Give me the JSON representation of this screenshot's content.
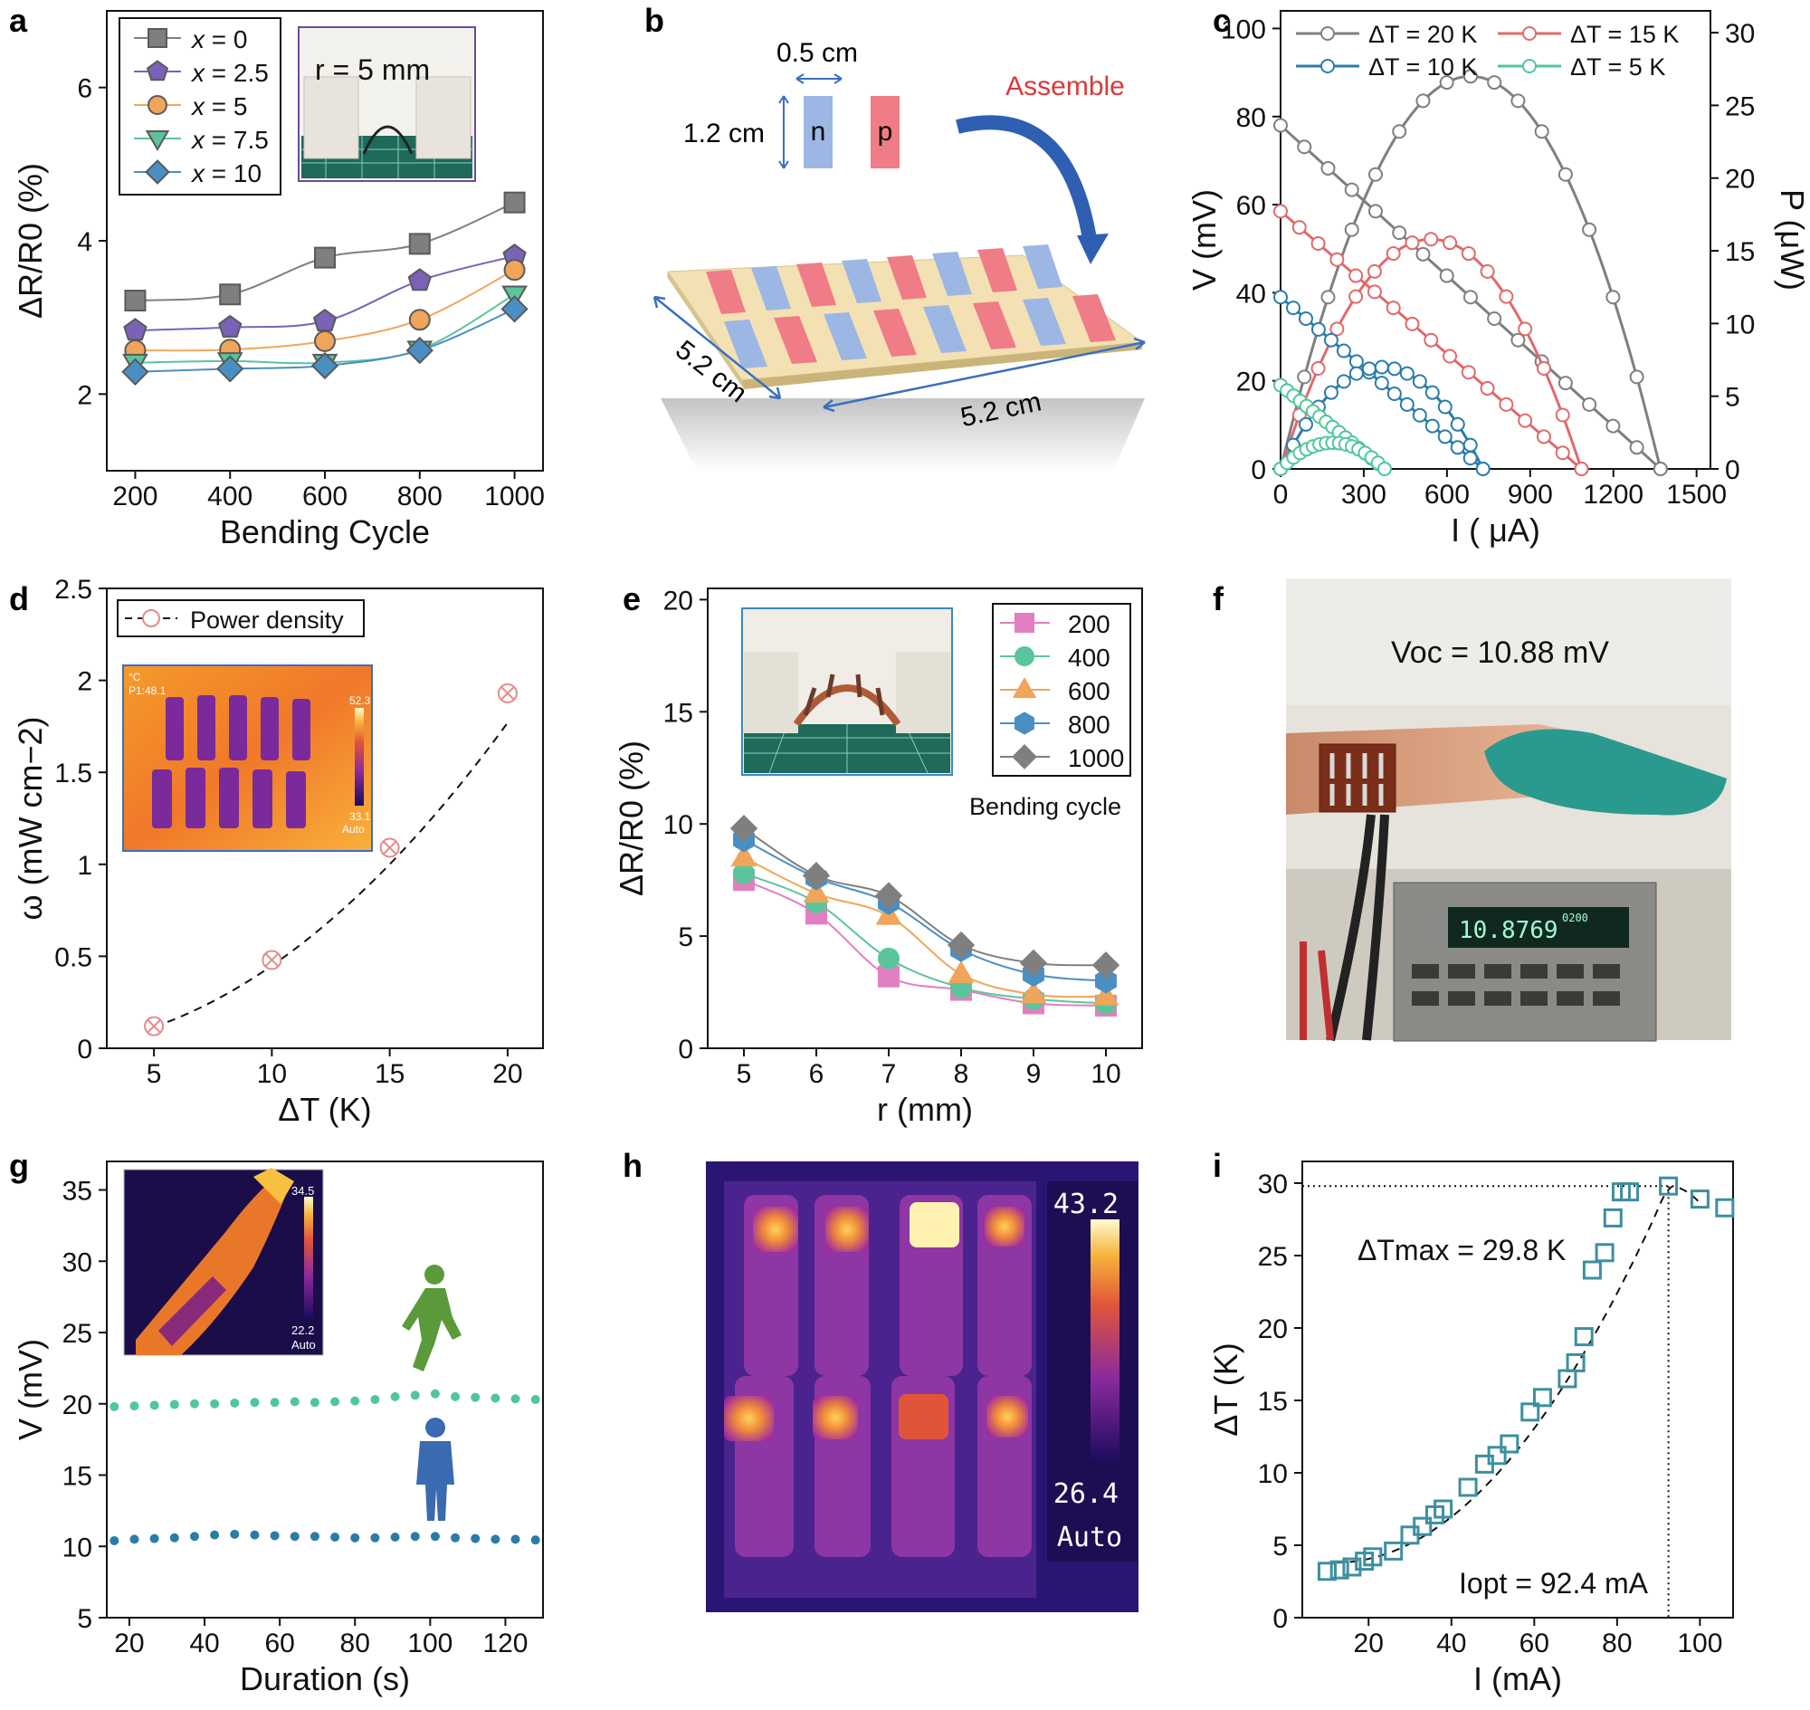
{
  "figure": {
    "panel_labels": [
      "a",
      "b",
      "c",
      "d",
      "e",
      "f",
      "g",
      "h",
      "i"
    ]
  },
  "colors": {
    "gray": "#7f7f7f",
    "purple": "#7a62b8",
    "orange": "#f0a55a",
    "green": "#5cc49a",
    "blue": "#4a8fc4",
    "red": "#e06a6a",
    "teal": "#2a7ca8",
    "mint": "#4fc79a",
    "pink": "#e27fc0",
    "pink_red": "#e58a8a",
    "dark_teal": "#3d8fa0"
  },
  "chart_data": [
    {
      "id": "a",
      "type": "line",
      "title": "",
      "xlabel": "Bending Cycle",
      "ylabel": "ΔR/R0 (%)",
      "xlim": [
        140,
        1060
      ],
      "ylim": [
        1.0,
        7.0
      ],
      "xticks": [
        200,
        400,
        600,
        800,
        1000
      ],
      "yticks": [
        2,
        4,
        6
      ],
      "x": [
        200,
        400,
        600,
        800,
        1000
      ],
      "series": [
        {
          "name": "x = 0",
          "marker": "square",
          "color": "#7f7f7f",
          "values": [
            3.22,
            3.3,
            3.78,
            3.96,
            4.5
          ]
        },
        {
          "name": "x = 2.5",
          "marker": "pentagon",
          "color": "#7a62b8",
          "values": [
            2.83,
            2.87,
            2.95,
            3.48,
            3.8
          ]
        },
        {
          "name": "x = 5",
          "marker": "circle",
          "color": "#f0a55a",
          "values": [
            2.57,
            2.58,
            2.69,
            2.97,
            3.62
          ]
        },
        {
          "name": "x = 7.5",
          "marker": "triangle-down",
          "color": "#5cc49a",
          "values": [
            2.41,
            2.43,
            2.41,
            2.58,
            3.3
          ]
        },
        {
          "name": "x = 10",
          "marker": "diamond",
          "color": "#4a8fc4",
          "values": [
            2.29,
            2.33,
            2.37,
            2.57,
            3.11
          ]
        }
      ],
      "inset_text": "r = 5 mm"
    },
    {
      "id": "c",
      "type": "line",
      "xlabel": "I ( μA)",
      "ylabel": "V (mV)",
      "ylabel_right": "P (μW)",
      "xlim": [
        0,
        1550
      ],
      "ylim": [
        0,
        104
      ],
      "ylim_right": [
        0,
        31.5
      ],
      "xticks": [
        0,
        300,
        600,
        900,
        1200,
        1500
      ],
      "yticks": [
        0,
        20,
        40,
        60,
        80,
        100
      ],
      "yticks_right": [
        0,
        5,
        10,
        15,
        20,
        25,
        30
      ],
      "series": [
        {
          "name": "ΔT = 20 K",
          "color": "#7f7f7f",
          "voc": 78,
          "isc": 1370,
          "pmax": 27.0
        },
        {
          "name": "ΔT = 15 K",
          "color": "#e06a6a",
          "voc": 58.5,
          "isc": 1085,
          "pmax": 15.8
        },
        {
          "name": "ΔT = 10 K",
          "color": "#2a7ca8",
          "voc": 39,
          "isc": 730,
          "pmax": 7.0
        },
        {
          "name": "ΔT = 5 K",
          "color": "#4fc79a",
          "voc": 19,
          "isc": 375,
          "pmax": 1.8
        }
      ]
    },
    {
      "id": "d",
      "type": "scatter",
      "xlabel": "ΔT (K)",
      "ylabel": "ω (mW cm−2)",
      "xlim": [
        3,
        21.5
      ],
      "ylim": [
        0,
        2.5
      ],
      "xticks": [
        5,
        10,
        15,
        20
      ],
      "yticks": [
        0,
        0.5,
        1,
        1.5,
        2,
        2.5
      ],
      "ytick_labels": [
        "0",
        "0.5",
        "1",
        "1.5",
        "2",
        "2.5"
      ],
      "series": [
        {
          "name": "Power density",
          "color": "#e58a8a",
          "x": [
            5,
            10,
            15,
            20
          ],
          "values": [
            0.12,
            0.48,
            1.09,
            1.93
          ]
        }
      ]
    },
    {
      "id": "e",
      "type": "line",
      "xlabel": "r (mm)",
      "ylabel": "ΔR/R0 (%)",
      "xlim": [
        4.5,
        10.5
      ],
      "ylim": [
        0,
        20.5
      ],
      "xticks": [
        5,
        6,
        7,
        8,
        9,
        10
      ],
      "yticks": [
        0,
        5,
        10,
        15,
        20
      ],
      "x": [
        5,
        6,
        7,
        8,
        9,
        10
      ],
      "legend_title": "Bending cycle",
      "series": [
        {
          "name": "200",
          "marker": "square",
          "color": "#e27fc0",
          "values": [
            7.5,
            6.0,
            3.2,
            2.6,
            2.0,
            1.9
          ]
        },
        {
          "name": "400",
          "marker": "circle",
          "color": "#5cc49a",
          "values": [
            7.8,
            6.5,
            4.0,
            2.7,
            2.2,
            2.0
          ]
        },
        {
          "name": "600",
          "marker": "triangle",
          "color": "#f0a55a",
          "values": [
            8.5,
            6.9,
            5.9,
            3.3,
            2.4,
            2.3
          ]
        },
        {
          "name": "800",
          "marker": "hexagon",
          "color": "#4a8fc4",
          "values": [
            9.3,
            7.6,
            6.5,
            4.4,
            3.3,
            3.0
          ]
        },
        {
          "name": "1000",
          "marker": "diamond",
          "color": "#7f7f7f",
          "values": [
            9.8,
            7.7,
            6.8,
            4.6,
            3.8,
            3.7
          ]
        }
      ]
    },
    {
      "id": "g",
      "type": "scatter",
      "xlabel": "Duration (s)",
      "ylabel": "V (mV)",
      "xlim": [
        14,
        130
      ],
      "ylim": [
        5,
        37
      ],
      "xticks": [
        20,
        40,
        60,
        80,
        100,
        120
      ],
      "yticks": [
        5,
        10,
        15,
        20,
        25,
        30,
        35
      ],
      "series": [
        {
          "name": "walking",
          "color": "#4fc79a",
          "values": [
            19.8,
            19.85,
            19.9,
            19.95,
            20.0,
            20.0,
            20.05,
            20.1,
            20.1,
            20.15,
            20.1,
            20.15,
            20.2,
            20.3,
            20.5,
            20.6,
            20.7,
            20.5,
            20.45,
            20.4,
            20.35,
            20.3
          ]
        },
        {
          "name": "resting",
          "color": "#2a7ca8",
          "values": [
            10.4,
            10.5,
            10.55,
            10.6,
            10.7,
            10.8,
            10.85,
            10.8,
            10.75,
            10.7,
            10.7,
            10.65,
            10.6,
            10.6,
            10.65,
            10.7,
            10.7,
            10.6,
            10.55,
            10.5,
            10.5,
            10.45
          ]
        }
      ],
      "inset_scale": [
        "34.5",
        "22.2",
        "Auto"
      ]
    },
    {
      "id": "i",
      "type": "scatter",
      "xlabel": "I (mA)",
      "ylabel": "ΔT (K)",
      "xlim": [
        4,
        108
      ],
      "ylim": [
        0,
        31.5
      ],
      "xticks": [
        20,
        40,
        60,
        80,
        100
      ],
      "yticks": [
        0,
        5,
        10,
        15,
        20,
        25,
        30
      ],
      "series": [
        {
          "name": "ΔT",
          "color": "#3d8fa0",
          "x": [
            10,
            13,
            16,
            19,
            21,
            26,
            30,
            33,
            36,
            38,
            44,
            48,
            51,
            54,
            59,
            62,
            68,
            70,
            72,
            74,
            77,
            79,
            81,
            83,
            92.4,
            100,
            106
          ],
          "values": [
            3.2,
            3.3,
            3.5,
            3.9,
            4.2,
            4.6,
            5.7,
            6.3,
            7.1,
            7.5,
            9.0,
            10.6,
            11.2,
            12.0,
            14.2,
            15.2,
            16.5,
            17.6,
            19.4,
            24.0,
            25.2,
            27.6,
            29.4,
            29.4,
            29.8,
            28.9,
            28.3
          ]
        }
      ],
      "annotations": {
        "dtmax": "ΔTmax = 29.8 K",
        "iopt": "Iopt = 92.4 mA"
      }
    }
  ],
  "panel_b": {
    "dim_width": "0.5 cm",
    "dim_height": "1.2 cm",
    "leg_n": "n",
    "leg_p": "p",
    "assemble": "Assemble",
    "dim_side_left": "5.2 cm",
    "dim_side_right": "5.2 cm"
  },
  "panel_d_inset": {
    "unit": "°C",
    "point": "P1:48.1",
    "max": "52.3",
    "min": "33.1",
    "mode": "Auto"
  },
  "panel_f": {
    "voc_label": "Voc = 10.88 mV",
    "meter_reading": "10.8769",
    "meter_range": "0200"
  },
  "panel_h": {
    "max": "43.2",
    "min": "26.4",
    "mode": "Auto"
  }
}
